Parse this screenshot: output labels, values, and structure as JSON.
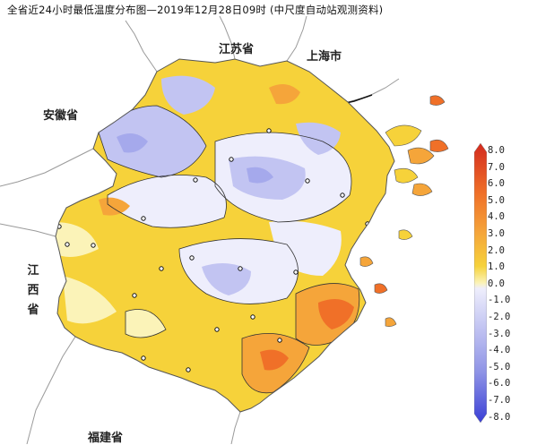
{
  "title": "全省近24小时最低温度分布图—2019年12月28日09时    (中尺度自动站观测资料)",
  "regions": {
    "jiangsu": "江苏省",
    "shanghai": "上海市",
    "anhui": "安徽省",
    "jiangxi": [
      "江",
      "西",
      "省"
    ],
    "fujian": "福建省"
  },
  "legend": {
    "ticks": [
      "8.0",
      "7.0",
      "6.0",
      "5.0",
      "4.0",
      "3.0",
      "2.0",
      "1.0",
      "0.0",
      "-1.0",
      "-2.0",
      "-3.0",
      "-4.0",
      "-5.0",
      "-6.0",
      "-7.0",
      "-8.0"
    ],
    "colors": {
      "warm_max": "#d32a1e",
      "warm_high": "#f07028",
      "orange": "#f5a53a",
      "yellow": "#f6d23a",
      "light_yellow": "#fbf3b8",
      "neutral": "#eeeefc",
      "lavender": "#c2c4f2",
      "blue": "#8e93e6",
      "deep_blue": "#3a3fd6"
    }
  }
}
